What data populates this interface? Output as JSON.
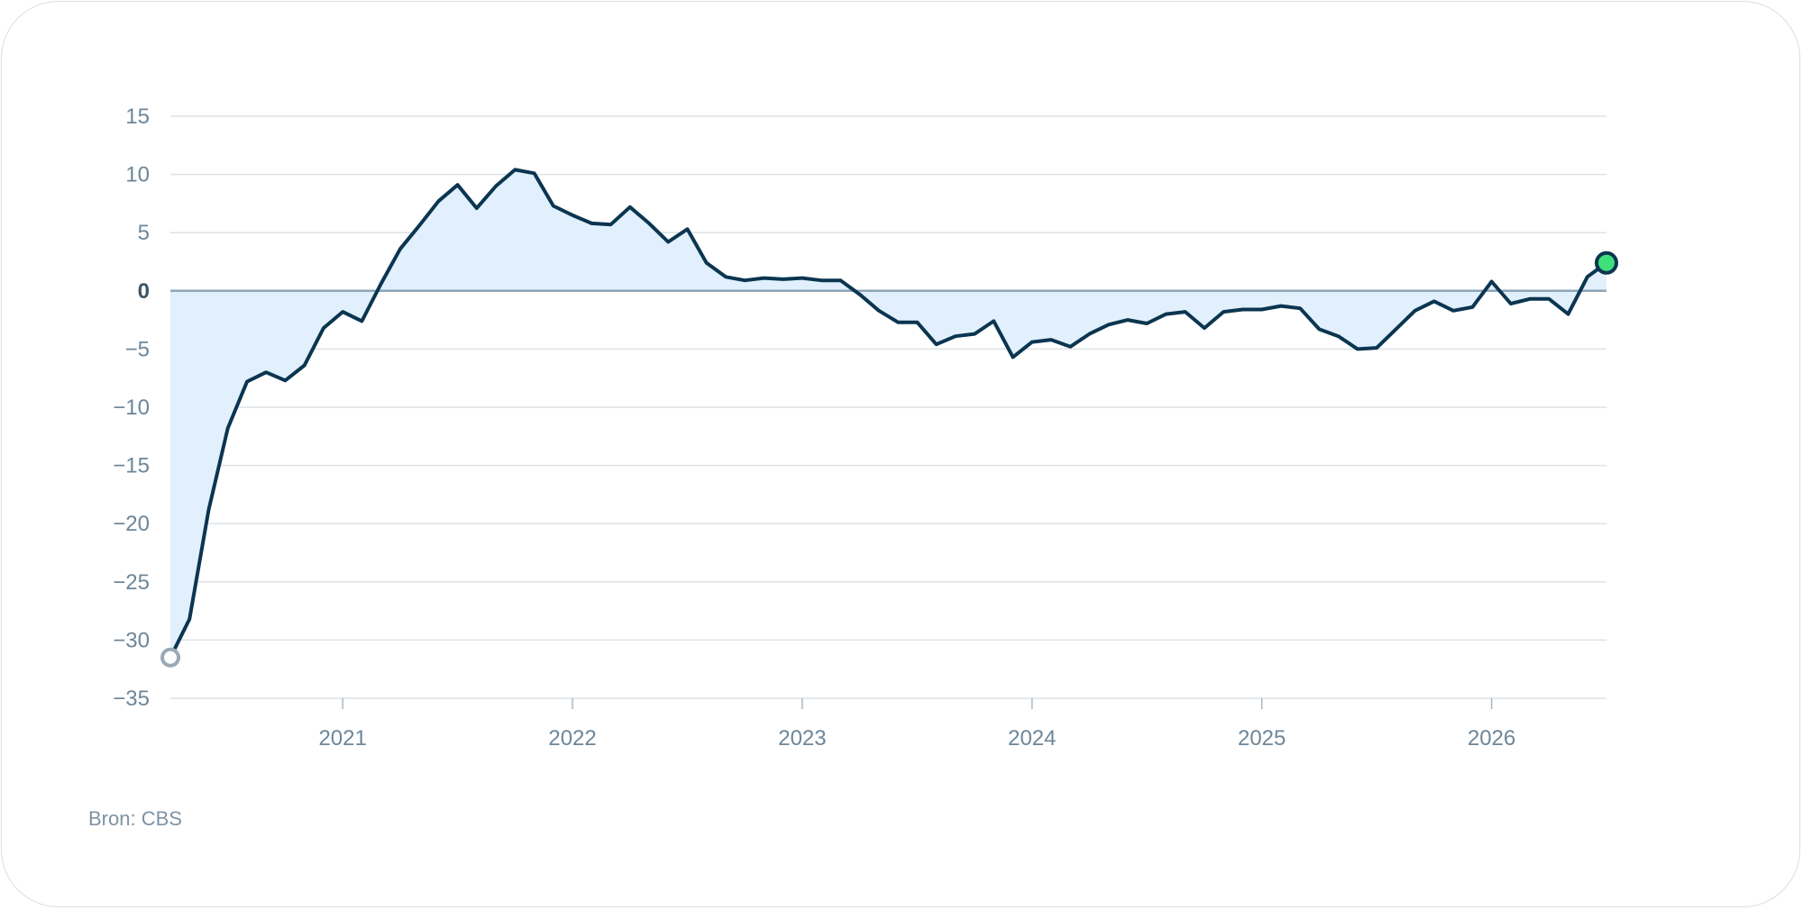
{
  "source": "Bron: CBS",
  "colors": {
    "line": "#0b3550",
    "area": "#e1f0fc",
    "grid": "#dde3e8",
    "zero_line": "#8ea5b8",
    "start_marker": "#9aa9b5",
    "end_marker": "#3ee07a"
  },
  "chart_data": {
    "type": "area",
    "y_ticks": [
      15,
      10,
      5,
      0,
      -5,
      -10,
      -15,
      -20,
      -25,
      -30,
      -35
    ],
    "ylim": [
      -35,
      15
    ],
    "x_ticks": [
      "2021",
      "2022",
      "2023",
      "2024",
      "2025",
      "2026"
    ],
    "xlim": [
      "2020-04",
      "2026-07"
    ],
    "grid": true,
    "series": [
      {
        "x": [
          "2020-04",
          "2020-05",
          "2020-06",
          "2020-07",
          "2020-08",
          "2020-09",
          "2020-10",
          "2020-11",
          "2020-12",
          "2021-01",
          "2021-02",
          "2021-03",
          "2021-04",
          "2021-05",
          "2021-06",
          "2021-07",
          "2021-08",
          "2021-09",
          "2021-10",
          "2021-11",
          "2021-12",
          "2022-01",
          "2022-02",
          "2022-03",
          "2022-04",
          "2022-05",
          "2022-06",
          "2022-07",
          "2022-08",
          "2022-09",
          "2022-10",
          "2022-11",
          "2022-12",
          "2023-01",
          "2023-02",
          "2023-03",
          "2023-04",
          "2023-05",
          "2023-06",
          "2023-07",
          "2023-08",
          "2023-09",
          "2023-10",
          "2023-11",
          "2023-12",
          "2024-01",
          "2024-02",
          "2024-03",
          "2024-04",
          "2024-05",
          "2024-06",
          "2024-07",
          "2024-08",
          "2024-09",
          "2024-10",
          "2024-11",
          "2024-12",
          "2025-01",
          "2025-02",
          "2025-03",
          "2025-04",
          "2025-05",
          "2025-06",
          "2025-07",
          "2025-08",
          "2025-09",
          "2025-10",
          "2025-11",
          "2025-12",
          "2026-01",
          "2026-02",
          "2026-03",
          "2026-04",
          "2026-05",
          "2026-06",
          "2026-07"
        ],
        "values": [
          -31.5,
          -28.2,
          -18.8,
          -11.8,
          -7.8,
          -7.0,
          -7.7,
          -6.4,
          -3.2,
          -1.8,
          -2.6,
          0.6,
          3.6,
          5.6,
          7.7,
          9.1,
          7.1,
          9.0,
          10.4,
          10.1,
          7.3,
          6.5,
          5.8,
          5.7,
          7.2,
          5.8,
          4.2,
          5.3,
          2.4,
          1.2,
          0.9,
          1.1,
          1.0,
          1.1,
          0.9,
          0.9,
          -0.3,
          -1.7,
          -2.7,
          -2.7,
          -4.6,
          -3.9,
          -3.7,
          -2.6,
          -5.7,
          -4.4,
          -4.2,
          -4.8,
          -3.7,
          -2.9,
          -2.5,
          -2.8,
          -2.0,
          -1.8,
          -3.2,
          -1.8,
          -1.6,
          -1.6,
          -1.3,
          -1.5,
          -3.3,
          -3.9,
          -5.0,
          -4.9,
          -3.3,
          -1.7,
          -0.9,
          -1.7,
          -1.4,
          0.8,
          -1.1,
          -0.7,
          -0.7,
          -2.0,
          1.2,
          2.4
        ]
      }
    ]
  }
}
